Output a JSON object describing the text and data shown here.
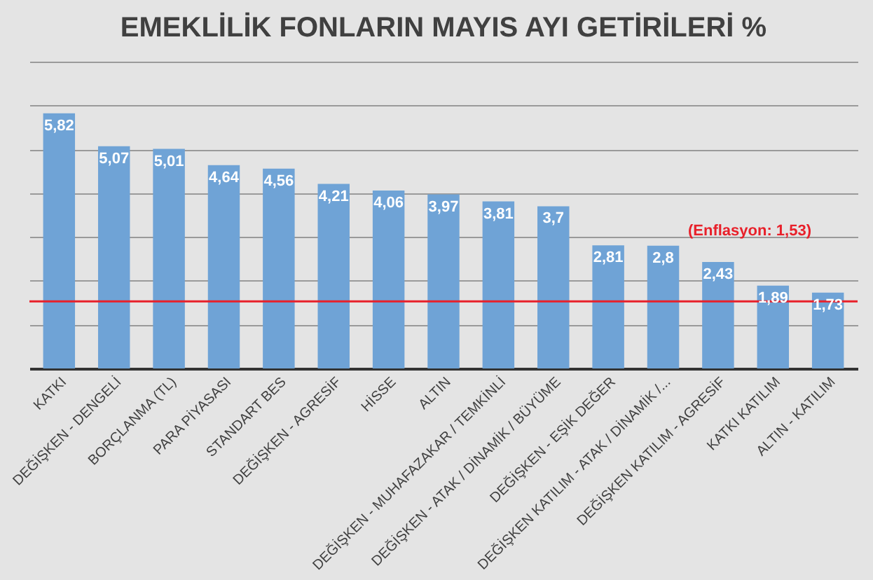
{
  "chart_data": {
    "type": "bar",
    "title": "EMEKLİLİK FONLARIN MAYIS AYI GETİRİLERİ %",
    "categories": [
      "KATKI",
      "DEĞİŞKEN - DENGELİ",
      "BORÇLANMA (TL)",
      "PARA PİYASASI",
      "STANDART BES",
      "DEĞİŞKEN - AGRESİF",
      "HİSSE",
      "ALTIN",
      "DEĞİŞKEN - MUHAFAZAKAR / TEMKİNLİ",
      "DEĞİŞKEN - ATAK / DİNAMİK / BÜYÜME",
      "DEĞİŞKEN - EŞİK DEĞER",
      "DEĞİŞKEN KATILIM - ATAK / DİNAMİK /...",
      "DEĞİŞKEN KATILIM - AGRESİF",
      "KATKI KATILIM",
      "ALTIN - KATILIM"
    ],
    "values": [
      5.82,
      5.07,
      5.01,
      4.64,
      4.56,
      4.21,
      4.06,
      3.97,
      3.81,
      3.7,
      2.81,
      2.8,
      2.43,
      1.89,
      1.73
    ],
    "value_labels": [
      "5,82",
      "5,07",
      "5,01",
      "4,64",
      "4,56",
      "4,21",
      "4,06",
      "3,97",
      "3,81",
      "3,7",
      "2,81",
      "2,8",
      "2,43",
      "1,89",
      "1,73"
    ],
    "color": "#6fa3d6",
    "tick_labels": "x",
    "grid": "y",
    "legend": false,
    "ref_lines": [
      {
        "axis": "y",
        "value": 1.53,
        "label": "(Enflasyon: 1,53)",
        "color": "#e8202a",
        "line_style": "solid"
      }
    ]
  }
}
